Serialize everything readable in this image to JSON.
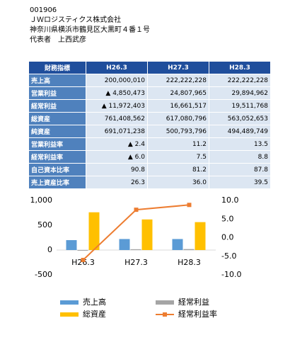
{
  "header": {
    "code": "001906",
    "company": "ＪＷロジスティクス株式会社",
    "address": "神奈川県横浜市鶴見区大黒町４番１号",
    "representative": "代表者　上西武彦"
  },
  "table": {
    "header": [
      "財務指標",
      "H26.3",
      "H27.3",
      "H28.3"
    ],
    "rows": [
      [
        "売上高",
        "200,000,010",
        "222,222,228",
        "222,222,228"
      ],
      [
        "営業利益",
        "▲ 4,850,473",
        "24,807,965",
        "29,894,962"
      ],
      [
        "経常利益",
        "▲ 11,972,403",
        "16,661,517",
        "19,511,768"
      ],
      [
        "総資産",
        "761,408,562",
        "617,080,796",
        "563,052,653"
      ],
      [
        "純資産",
        "691,071,238",
        "500,793,796",
        "494,489,749"
      ],
      [
        "営業利益率",
        "▲ 2.4",
        "11.2",
        "13.5"
      ],
      [
        "経常利益率",
        "▲ 6.0",
        "7.5",
        "8.8"
      ],
      [
        "自己資本比率",
        "90.8",
        "81.2",
        "87.8"
      ],
      [
        "売上資産比率",
        "26.3",
        "36.0",
        "39.5"
      ]
    ]
  },
  "chart_data": {
    "type": "bar-line",
    "categories": [
      "H26.3",
      "H27.3",
      "H28.3"
    ],
    "series": [
      {
        "name": "売上高",
        "color": "#5b9bd5",
        "type": "bar",
        "values": [
          200.0,
          222.2,
          222.2
        ]
      },
      {
        "name": "経常利益",
        "color": "#a5a5a5",
        "type": "bar",
        "values": [
          -12.0,
          16.7,
          19.5
        ]
      },
      {
        "name": "総資産",
        "color": "#ffc000",
        "type": "bar",
        "values": [
          761.4,
          617.1,
          563.1
        ]
      },
      {
        "name": "経常利益率",
        "color": "#ed7d31",
        "type": "line",
        "axis": "y2",
        "values": [
          -6.0,
          7.5,
          8.8
        ]
      }
    ],
    "ylim": [
      -500,
      1000
    ],
    "yticks": [
      -500,
      0,
      500,
      {
        "value": 1000,
        "label": "1,000"
      }
    ],
    "y2lim": [
      -10,
      10
    ],
    "y2ticks": [
      {
        "value": -10,
        "label": "-10.0"
      },
      {
        "value": -5,
        "label": "-5.0"
      },
      {
        "value": 0,
        "label": "0.0"
      },
      {
        "value": 5,
        "label": "5.0"
      },
      {
        "value": 10,
        "label": "10.0"
      }
    ]
  }
}
